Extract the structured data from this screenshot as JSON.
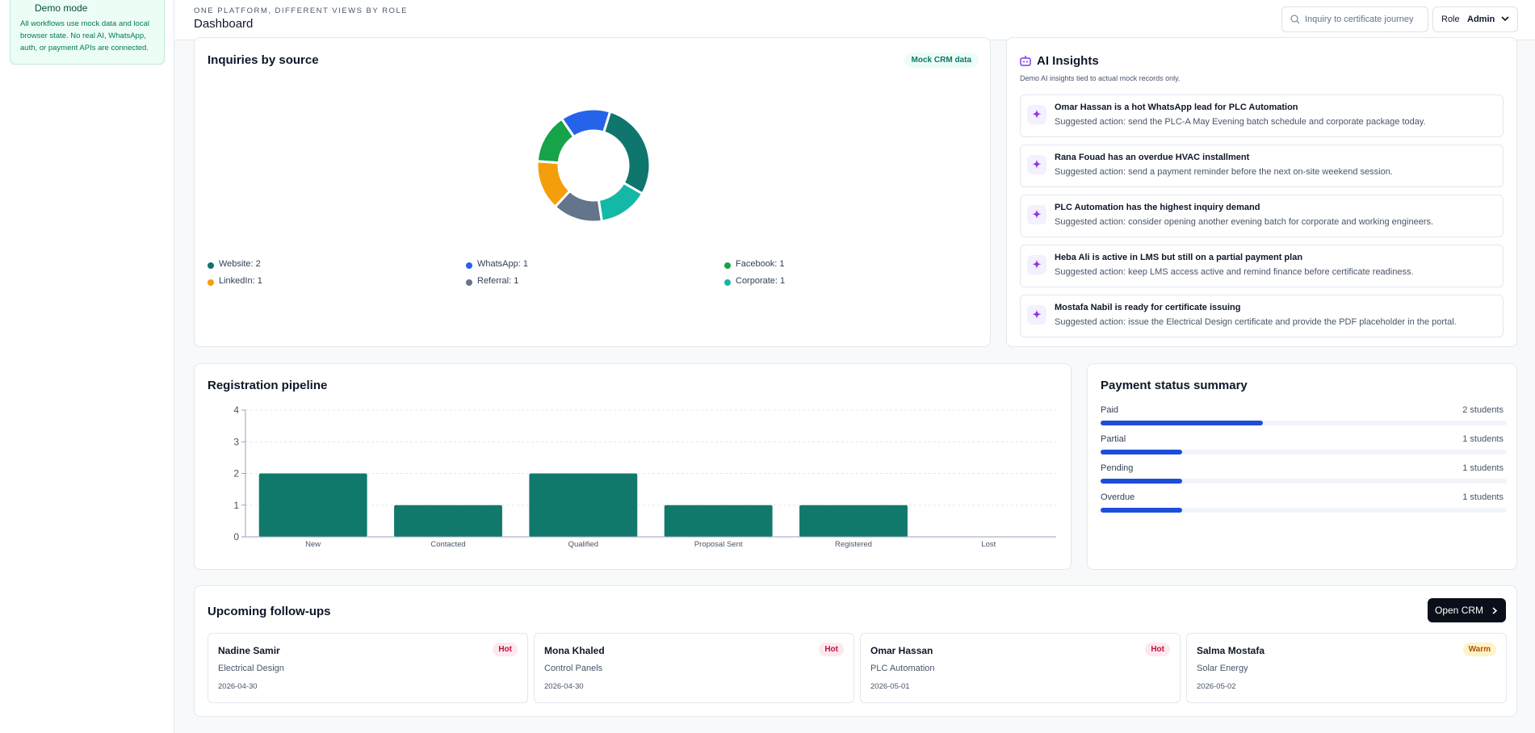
{
  "sidebar": {
    "demo_title": "Demo mode",
    "demo_text": "All workflows use mock data and local browser state. No real AI, WhatsApp, auth, or payment APIs are connected."
  },
  "header": {
    "eyebrow": "ONE PLATFORM, DIFFERENT VIEWS BY ROLE",
    "title": "Dashboard",
    "search_placeholder": "Inquiry to certificate journey",
    "role_label": "Role",
    "role_value": "Admin"
  },
  "inquiries": {
    "title": "Inquiries by source",
    "badge": "Mock CRM data",
    "chart_data": {
      "type": "pie",
      "categories": [
        "Website: 2",
        "WhatsApp: 1",
        "Facebook: 1",
        "LinkedIn: 1",
        "Referral: 1",
        "Corporate: 1"
      ],
      "values": [
        2,
        1,
        1,
        1,
        1,
        1
      ],
      "colors": [
        "#0f766e",
        "#2563eb",
        "#16a34a",
        "#f59e0b",
        "#64748b",
        "#14b8a6"
      ]
    }
  },
  "insights": {
    "title": "AI Insights",
    "subtitle": "Demo AI insights tied to actual mock records only.",
    "items": [
      {
        "title": "Omar Hassan is a hot WhatsApp lead for PLC Automation",
        "text": "Suggested action: send the PLC-A May Evening batch schedule and corporate package today."
      },
      {
        "title": "Rana Fouad has an overdue HVAC installment",
        "text": "Suggested action: send a payment reminder before the next on-site weekend session."
      },
      {
        "title": "PLC Automation has the highest inquiry demand",
        "text": "Suggested action: consider opening another evening batch for corporate and working engineers."
      },
      {
        "title": "Heba Ali is active in LMS but still on a partial payment plan",
        "text": "Suggested action: keep LMS access active and remind finance before certificate readiness."
      },
      {
        "title": "Mostafa Nabil is ready for certificate issuing",
        "text": "Suggested action: issue the Electrical Design certificate and provide the PDF placeholder in the portal."
      }
    ]
  },
  "pipeline": {
    "title": "Registration pipeline",
    "chart_data": {
      "type": "bar",
      "categories": [
        "New",
        "Contacted",
        "Qualified",
        "Proposal Sent",
        "Registered",
        "Lost"
      ],
      "values": [
        2,
        1,
        2,
        1,
        1,
        0
      ],
      "color": "#11796b",
      "ylim": [
        0,
        4
      ],
      "yticks": [
        0,
        1,
        2,
        3,
        4
      ],
      "grid": true
    }
  },
  "payments": {
    "title": "Payment status summary",
    "chart_data": {
      "type": "progress",
      "categories": [
        "Paid",
        "Partial",
        "Pending",
        "Overdue"
      ],
      "values": [
        2,
        1,
        1,
        1
      ],
      "value_labels": [
        "2 students",
        "1 students",
        "1 students",
        "1 students"
      ],
      "xlim": [
        0,
        5
      ],
      "color": "#1d4ed8"
    }
  },
  "followups": {
    "title": "Upcoming follow-ups",
    "button": "Open CRM",
    "cards": [
      {
        "name": "Nadine Samir",
        "course": "Electrical Design",
        "date": "2026-04-30",
        "tag": "Hot"
      },
      {
        "name": "Mona Khaled",
        "course": "Control Panels",
        "date": "2026-04-30",
        "tag": "Hot"
      },
      {
        "name": "Omar Hassan",
        "course": "PLC Automation",
        "date": "2026-05-01",
        "tag": "Hot"
      },
      {
        "name": "Salma Mostafa",
        "course": "Solar Energy",
        "date": "2026-05-02",
        "tag": "Warm"
      }
    ]
  }
}
